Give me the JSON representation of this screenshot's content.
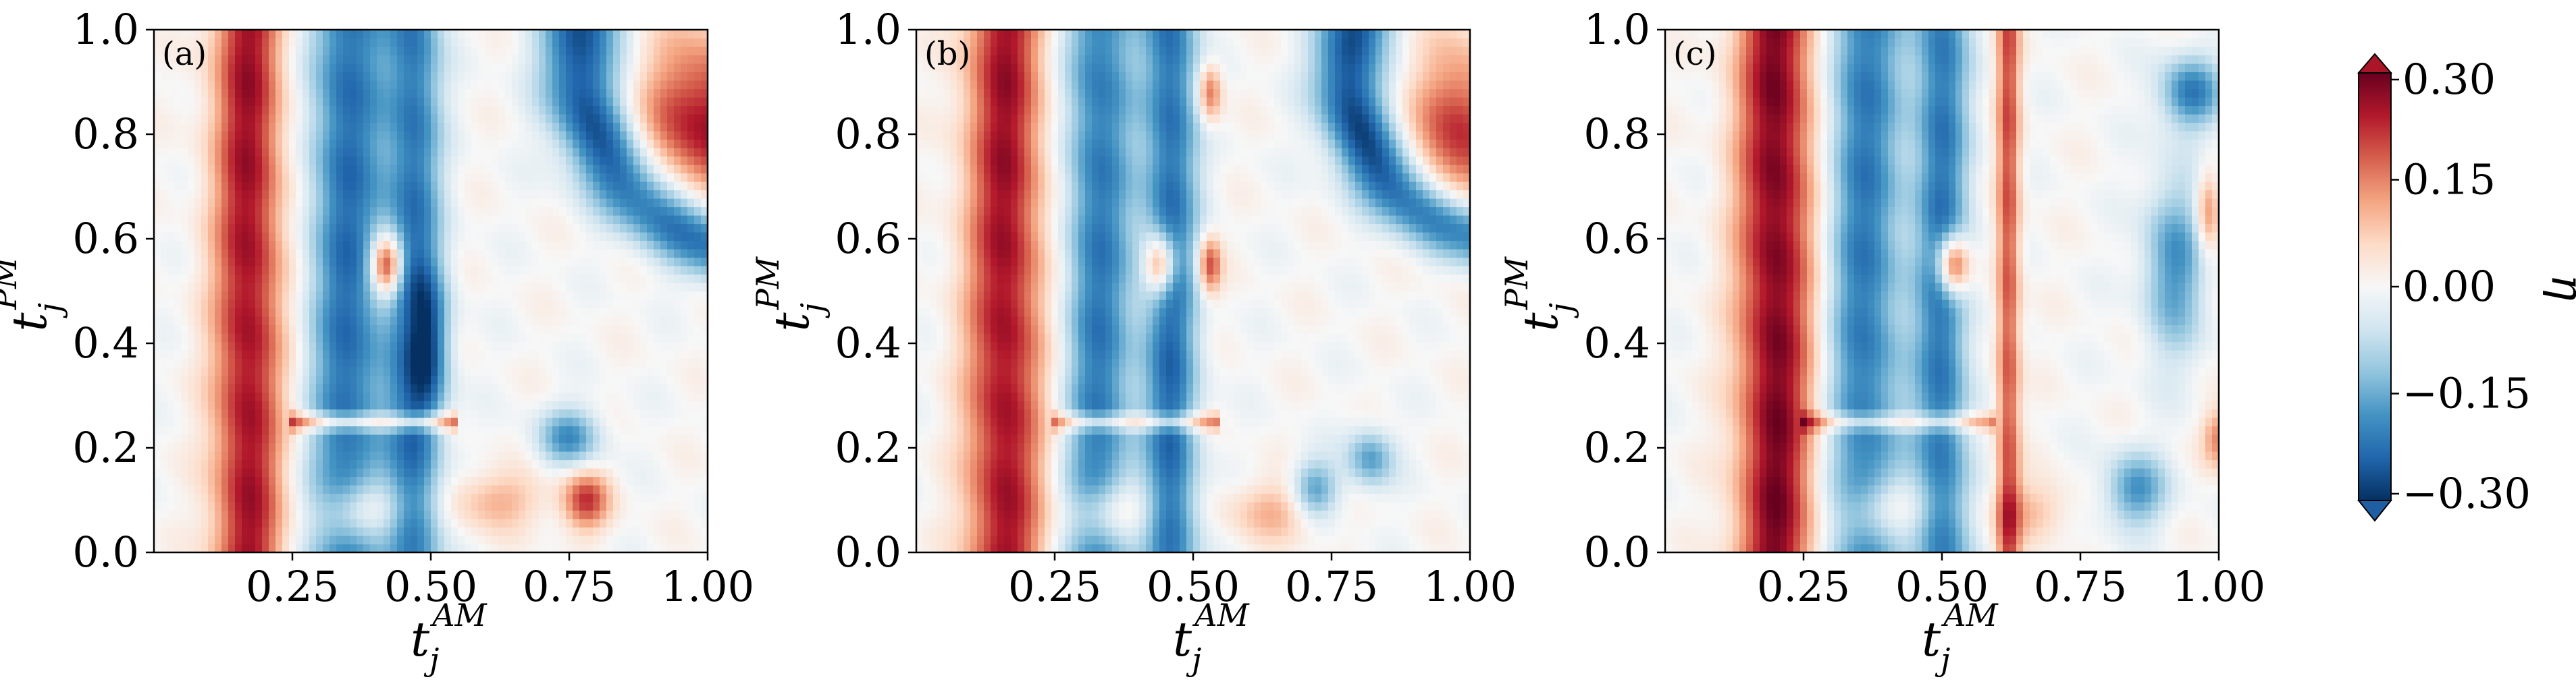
{
  "chart_data": [
    {
      "type": "heatmap",
      "panel_label": "(a)",
      "xlabel": {
        "main": "t",
        "sub": "j",
        "sup": "AM"
      },
      "ylabel": {
        "main": "t",
        "sub": "j",
        "sup": "PM"
      },
      "xlim": [
        0,
        1
      ],
      "ylim": [
        0,
        1
      ],
      "xticks": [
        "0.25",
        "0.50",
        "0.75",
        "1.00"
      ],
      "yticks": [
        "0.0",
        "0.2",
        "0.4",
        "0.6",
        "0.8",
        "1.0"
      ],
      "features": [
        {
          "shape": "vband",
          "x": 0.17,
          "w": 0.045,
          "a": 0.85
        },
        {
          "shape": "vband",
          "x": 0.35,
          "w": 0.05,
          "a": -0.75
        },
        {
          "shape": "vband",
          "x": 0.47,
          "w": 0.035,
          "a": -0.7
        },
        {
          "shape": "blob",
          "x": 0.5,
          "y": 0.4,
          "sx": 0.025,
          "sy": 0.1,
          "a": -0.5
        },
        {
          "shape": "blob",
          "x": 0.42,
          "y": 0.55,
          "sx": 0.02,
          "sy": 0.04,
          "a": 1.1
        },
        {
          "shape": "blob",
          "x": 0.38,
          "y": 0.08,
          "sx": 0.05,
          "sy": 0.04,
          "a": 0.55
        },
        {
          "shape": "blob",
          "x": 0.62,
          "y": 0.1,
          "sx": 0.06,
          "sy": 0.04,
          "a": 0.35
        },
        {
          "shape": "blob",
          "x": 0.78,
          "y": 0.1,
          "sx": 0.03,
          "sy": 0.04,
          "a": 0.7
        },
        {
          "shape": "blob",
          "x": 0.75,
          "y": 0.22,
          "sx": 0.04,
          "sy": 0.04,
          "a": -0.6
        },
        {
          "shape": "arc",
          "cx": 1.15,
          "cy": 0.95,
          "r": 0.38,
          "w": 0.05,
          "a": -0.9
        },
        {
          "shape": "blob",
          "x": 1.0,
          "y": 0.82,
          "sx": 0.09,
          "sy": 0.12,
          "a": 0.85
        },
        {
          "shape": "hline",
          "y": 0.25,
          "w": 0.012,
          "x0": 0.25,
          "x1": 0.55,
          "a": 0.6
        }
      ]
    },
    {
      "type": "heatmap",
      "panel_label": "(b)",
      "xlabel": {
        "main": "t",
        "sub": "j",
        "sup": "AM"
      },
      "ylabel": {
        "main": "t",
        "sub": "j",
        "sup": "PM"
      },
      "xlim": [
        0,
        1
      ],
      "ylim": [
        0,
        1
      ],
      "xticks": [
        "0.25",
        "0.50",
        "0.75",
        "1.00"
      ],
      "yticks": [
        "0.0",
        "0.2",
        "0.4",
        "0.6",
        "0.8",
        "1.0"
      ],
      "features": [
        {
          "shape": "vband",
          "x": 0.16,
          "w": 0.05,
          "a": 0.85
        },
        {
          "shape": "vband",
          "x": 0.33,
          "w": 0.045,
          "a": -0.7
        },
        {
          "shape": "vband",
          "x": 0.46,
          "w": 0.035,
          "a": -0.75
        },
        {
          "shape": "blob",
          "x": 0.44,
          "y": 0.55,
          "sx": 0.02,
          "sy": 0.04,
          "a": 0.9
        },
        {
          "shape": "blob",
          "x": 0.53,
          "y": 0.55,
          "sx": 0.015,
          "sy": 0.04,
          "a": 0.7
        },
        {
          "shape": "blob",
          "x": 0.53,
          "y": 0.88,
          "sx": 0.015,
          "sy": 0.04,
          "a": 0.6
        },
        {
          "shape": "blob",
          "x": 0.36,
          "y": 0.08,
          "sx": 0.05,
          "sy": 0.04,
          "a": 0.5
        },
        {
          "shape": "blob",
          "x": 0.65,
          "y": 0.08,
          "sx": 0.06,
          "sy": 0.04,
          "a": 0.35
        },
        {
          "shape": "blob",
          "x": 0.72,
          "y": 0.12,
          "sx": 0.03,
          "sy": 0.04,
          "a": -0.6
        },
        {
          "shape": "blob",
          "x": 0.82,
          "y": 0.18,
          "sx": 0.03,
          "sy": 0.04,
          "a": -0.55
        },
        {
          "shape": "arc",
          "cx": 1.1,
          "cy": 0.92,
          "r": 0.32,
          "w": 0.045,
          "a": -0.9
        },
        {
          "shape": "blob",
          "x": 0.98,
          "y": 0.8,
          "sx": 0.06,
          "sy": 0.12,
          "a": 0.75
        },
        {
          "shape": "hline",
          "y": 0.25,
          "w": 0.012,
          "x0": 0.25,
          "x1": 0.55,
          "a": 0.5
        }
      ]
    },
    {
      "type": "heatmap",
      "panel_label": "(c)",
      "xlabel": {
        "main": "t",
        "sub": "j",
        "sup": "AM"
      },
      "ylabel": {
        "main": "t",
        "sub": "j",
        "sup": "PM"
      },
      "xlim": [
        0,
        1
      ],
      "ylim": [
        0,
        1
      ],
      "xticks": [
        "0.25",
        "0.50",
        "0.75",
        "1.00"
      ],
      "yticks": [
        "0.0",
        "0.2",
        "0.4",
        "0.6",
        "0.8",
        "1.0"
      ],
      "features": [
        {
          "shape": "vband",
          "x": 0.2,
          "w": 0.05,
          "a": 0.95
        },
        {
          "shape": "vband",
          "x": 0.36,
          "w": 0.05,
          "a": -0.7
        },
        {
          "shape": "vband",
          "x": 0.5,
          "w": 0.035,
          "a": -0.7
        },
        {
          "shape": "blob",
          "x": 0.52,
          "y": 0.55,
          "sx": 0.02,
          "sy": 0.04,
          "a": 1.0
        },
        {
          "shape": "vband",
          "x": 0.62,
          "w": 0.015,
          "a": 0.65
        },
        {
          "shape": "blob",
          "x": 0.4,
          "y": 0.08,
          "sx": 0.05,
          "sy": 0.04,
          "a": 0.45
        },
        {
          "shape": "blob",
          "x": 0.66,
          "y": 0.08,
          "sx": 0.05,
          "sy": 0.04,
          "a": 0.3
        },
        {
          "shape": "blob",
          "x": 0.85,
          "y": 0.12,
          "sx": 0.04,
          "sy": 0.05,
          "a": -0.6
        },
        {
          "shape": "blob",
          "x": 0.92,
          "y": 0.55,
          "sx": 0.04,
          "sy": 0.12,
          "a": -0.6
        },
        {
          "shape": "blob",
          "x": 0.95,
          "y": 0.88,
          "sx": 0.04,
          "sy": 0.05,
          "a": -0.7
        },
        {
          "shape": "blob",
          "x": 0.98,
          "y": 0.65,
          "sx": 0.015,
          "sy": 0.06,
          "a": 0.5
        },
        {
          "shape": "blob",
          "x": 1.0,
          "y": 0.22,
          "sx": 0.02,
          "sy": 0.04,
          "a": 0.5
        },
        {
          "shape": "hline",
          "y": 0.25,
          "w": 0.012,
          "x0": 0.25,
          "x1": 0.6,
          "a": 0.45
        }
      ]
    }
  ],
  "colorbar": {
    "label": "η",
    "ticks": [
      "0.30",
      "0.15",
      "0.00",
      "−0.15",
      "−0.30"
    ],
    "range": [
      -0.3,
      0.3
    ],
    "colormap": [
      "#053061",
      "#2166ac",
      "#4393c3",
      "#92c5de",
      "#d1e5f0",
      "#f7f7f7",
      "#fddbc7",
      "#f4a582",
      "#d6604d",
      "#b2182b",
      "#67001f"
    ]
  }
}
